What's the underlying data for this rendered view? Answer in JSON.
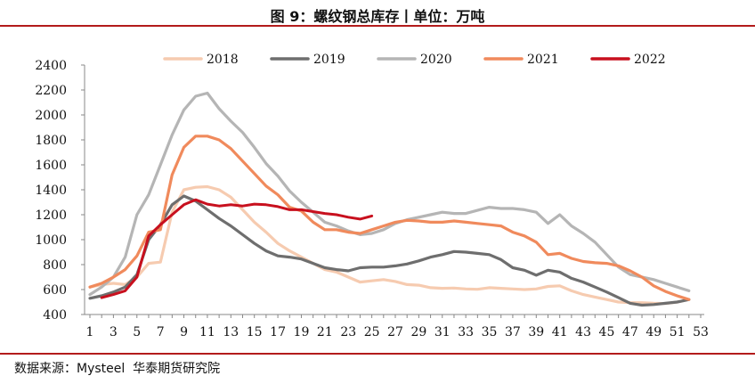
{
  "title": "图 9：螺纹钢总库存丨单位：万吨",
  "source_label": "数据来源：",
  "source_text": "Mysteel  华泰期货研究院",
  "colors": {
    "rule": "#b31b1b",
    "axis": "#888888",
    "text": "#111111"
  },
  "chart_data": {
    "type": "line",
    "title": "螺纹钢总库存",
    "xlabel": "",
    "ylabel": "万吨",
    "xlim": [
      1,
      53
    ],
    "ylim": [
      400,
      2400
    ],
    "y_ticks": [
      400,
      600,
      800,
      1000,
      1200,
      1400,
      1600,
      1800,
      2000,
      2200,
      2400
    ],
    "x_ticks": [
      1,
      3,
      5,
      7,
      9,
      11,
      13,
      15,
      17,
      19,
      21,
      23,
      25,
      27,
      29,
      31,
      33,
      35,
      37,
      39,
      41,
      43,
      45,
      47,
      49,
      51,
      53
    ],
    "grid": false,
    "legend_position": "top",
    "series": [
      {
        "name": "2018",
        "color": "#f6cbb0",
        "values": [
          [
            1,
            620
          ],
          [
            2,
            640
          ],
          [
            3,
            650
          ],
          [
            4,
            640
          ],
          [
            5,
            700
          ],
          [
            6,
            810
          ],
          [
            7,
            820
          ],
          [
            8,
            1220
          ],
          [
            9,
            1400
          ],
          [
            10,
            1420
          ],
          [
            11,
            1425
          ],
          [
            12,
            1400
          ],
          [
            13,
            1340
          ],
          [
            14,
            1240
          ],
          [
            15,
            1140
          ],
          [
            16,
            1060
          ],
          [
            17,
            970
          ],
          [
            18,
            910
          ],
          [
            19,
            860
          ],
          [
            20,
            810
          ],
          [
            21,
            760
          ],
          [
            22,
            740
          ],
          [
            23,
            700
          ],
          [
            24,
            660
          ],
          [
            25,
            670
          ],
          [
            26,
            680
          ],
          [
            27,
            665
          ],
          [
            28,
            640
          ],
          [
            29,
            635
          ],
          [
            30,
            615
          ],
          [
            31,
            610
          ],
          [
            32,
            612
          ],
          [
            33,
            605
          ],
          [
            34,
            602
          ],
          [
            35,
            615
          ],
          [
            36,
            610
          ],
          [
            37,
            605
          ],
          [
            38,
            600
          ],
          [
            39,
            605
          ],
          [
            40,
            625
          ],
          [
            41,
            630
          ],
          [
            42,
            590
          ],
          [
            43,
            560
          ],
          [
            44,
            540
          ],
          [
            45,
            520
          ],
          [
            46,
            500
          ],
          [
            47,
            495
          ],
          [
            48,
            495
          ],
          [
            49,
            490
          ],
          [
            50,
            488
          ],
          [
            51,
            500
          ],
          [
            52,
            520
          ]
        ]
      },
      {
        "name": "2019",
        "color": "#6e6e6e",
        "values": [
          [
            1,
            530
          ],
          [
            2,
            550
          ],
          [
            3,
            580
          ],
          [
            4,
            620
          ],
          [
            5,
            720
          ],
          [
            6,
            1000
          ],
          [
            7,
            1120
          ],
          [
            8,
            1280
          ],
          [
            9,
            1350
          ],
          [
            10,
            1310
          ],
          [
            11,
            1240
          ],
          [
            12,
            1170
          ],
          [
            13,
            1110
          ],
          [
            14,
            1040
          ],
          [
            15,
            970
          ],
          [
            16,
            910
          ],
          [
            17,
            870
          ],
          [
            18,
            860
          ],
          [
            19,
            845
          ],
          [
            20,
            810
          ],
          [
            21,
            775
          ],
          [
            22,
            760
          ],
          [
            23,
            750
          ],
          [
            24,
            775
          ],
          [
            25,
            780
          ],
          [
            26,
            780
          ],
          [
            27,
            790
          ],
          [
            28,
            805
          ],
          [
            29,
            830
          ],
          [
            30,
            860
          ],
          [
            31,
            880
          ],
          [
            32,
            905
          ],
          [
            33,
            900
          ],
          [
            34,
            890
          ],
          [
            35,
            880
          ],
          [
            36,
            840
          ],
          [
            37,
            775
          ],
          [
            38,
            755
          ],
          [
            39,
            715
          ],
          [
            40,
            755
          ],
          [
            41,
            740
          ],
          [
            42,
            690
          ],
          [
            43,
            660
          ],
          [
            44,
            620
          ],
          [
            45,
            580
          ],
          [
            46,
            535
          ],
          [
            47,
            490
          ],
          [
            48,
            475
          ],
          [
            49,
            480
          ],
          [
            50,
            490
          ],
          [
            51,
            500
          ],
          [
            52,
            520
          ]
        ]
      },
      {
        "name": "2020",
        "color": "#b5b5b5",
        "values": [
          [
            1,
            560
          ],
          [
            2,
            620
          ],
          [
            3,
            700
          ],
          [
            4,
            860
          ],
          [
            5,
            1200
          ],
          [
            6,
            1360
          ],
          [
            7,
            1600
          ],
          [
            8,
            1840
          ],
          [
            9,
            2040
          ],
          [
            10,
            2150
          ],
          [
            11,
            2175
          ],
          [
            12,
            2050
          ],
          [
            13,
            1950
          ],
          [
            14,
            1860
          ],
          [
            15,
            1740
          ],
          [
            16,
            1610
          ],
          [
            17,
            1510
          ],
          [
            18,
            1390
          ],
          [
            19,
            1300
          ],
          [
            20,
            1220
          ],
          [
            21,
            1140
          ],
          [
            22,
            1110
          ],
          [
            23,
            1070
          ],
          [
            24,
            1040
          ],
          [
            25,
            1050
          ],
          [
            26,
            1080
          ],
          [
            27,
            1130
          ],
          [
            28,
            1160
          ],
          [
            29,
            1180
          ],
          [
            30,
            1200
          ],
          [
            31,
            1220
          ],
          [
            32,
            1210
          ],
          [
            33,
            1210
          ],
          [
            34,
            1235
          ],
          [
            35,
            1260
          ],
          [
            36,
            1250
          ],
          [
            37,
            1250
          ],
          [
            38,
            1240
          ],
          [
            39,
            1220
          ],
          [
            40,
            1130
          ],
          [
            41,
            1200
          ],
          [
            42,
            1110
          ],
          [
            43,
            1050
          ],
          [
            44,
            980
          ],
          [
            45,
            880
          ],
          [
            46,
            780
          ],
          [
            47,
            720
          ],
          [
            48,
            700
          ],
          [
            49,
            680
          ],
          [
            50,
            650
          ],
          [
            51,
            620
          ],
          [
            52,
            590
          ]
        ]
      },
      {
        "name": "2021",
        "color": "#f08a5c",
        "values": [
          [
            1,
            620
          ],
          [
            2,
            650
          ],
          [
            3,
            700
          ],
          [
            4,
            760
          ],
          [
            5,
            870
          ],
          [
            6,
            1060
          ],
          [
            7,
            1080
          ],
          [
            8,
            1520
          ],
          [
            9,
            1740
          ],
          [
            10,
            1830
          ],
          [
            11,
            1830
          ],
          [
            12,
            1800
          ],
          [
            13,
            1730
          ],
          [
            14,
            1630
          ],
          [
            15,
            1530
          ],
          [
            16,
            1430
          ],
          [
            17,
            1360
          ],
          [
            18,
            1260
          ],
          [
            19,
            1230
          ],
          [
            20,
            1140
          ],
          [
            21,
            1080
          ],
          [
            22,
            1080
          ],
          [
            23,
            1060
          ],
          [
            24,
            1050
          ],
          [
            25,
            1080
          ],
          [
            26,
            1110
          ],
          [
            27,
            1140
          ],
          [
            28,
            1155
          ],
          [
            29,
            1150
          ],
          [
            30,
            1140
          ],
          [
            31,
            1140
          ],
          [
            32,
            1150
          ],
          [
            33,
            1140
          ],
          [
            34,
            1130
          ],
          [
            35,
            1120
          ],
          [
            36,
            1110
          ],
          [
            37,
            1060
          ],
          [
            38,
            1030
          ],
          [
            39,
            980
          ],
          [
            40,
            880
          ],
          [
            41,
            890
          ],
          [
            42,
            850
          ],
          [
            43,
            825
          ],
          [
            44,
            815
          ],
          [
            45,
            810
          ],
          [
            46,
            790
          ],
          [
            47,
            750
          ],
          [
            48,
            700
          ],
          [
            49,
            630
          ],
          [
            50,
            585
          ],
          [
            51,
            550
          ],
          [
            52,
            520
          ]
        ]
      },
      {
        "name": "2022",
        "color": "#c8101e",
        "values": [
          [
            2,
            535
          ],
          [
            3,
            560
          ],
          [
            4,
            590
          ],
          [
            5,
            700
          ],
          [
            6,
            1030
          ],
          [
            7,
            1120
          ],
          [
            8,
            1200
          ],
          [
            9,
            1280
          ],
          [
            10,
            1320
          ],
          [
            11,
            1285
          ],
          [
            12,
            1270
          ],
          [
            13,
            1280
          ],
          [
            14,
            1270
          ],
          [
            15,
            1285
          ],
          [
            16,
            1280
          ],
          [
            17,
            1265
          ],
          [
            18,
            1240
          ],
          [
            19,
            1240
          ],
          [
            20,
            1225
          ],
          [
            21,
            1210
          ],
          [
            22,
            1200
          ],
          [
            23,
            1180
          ],
          [
            24,
            1165
          ],
          [
            25,
            1190
          ]
        ]
      }
    ]
  }
}
